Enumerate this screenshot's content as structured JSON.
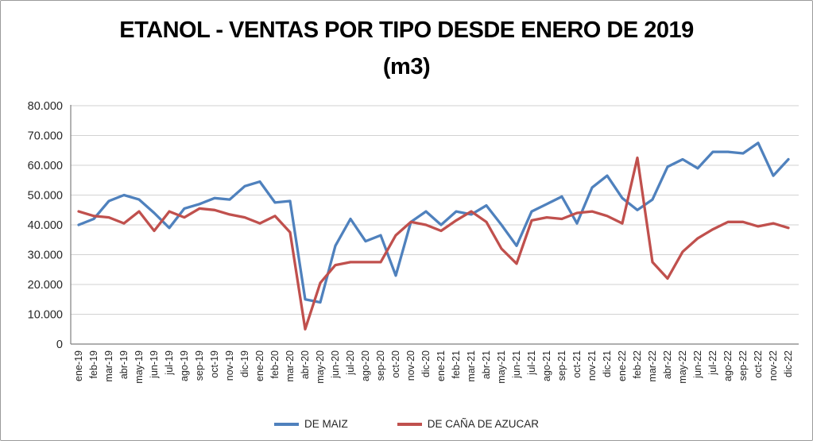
{
  "title": {
    "line1": "ETANOL - VENTAS POR TIPO DESDE ENERO DE 2019",
    "line2": "(m3)"
  },
  "legend": {
    "items": [
      {
        "label": "DE MAIZ",
        "color": "#4F81BD"
      },
      {
        "label": "DE CAÑA DE AZUCAR",
        "color": "#C0504D"
      }
    ],
    "position": "bottom-center"
  },
  "chart_data": {
    "type": "line",
    "title": "ETANOL - VENTAS POR TIPO DESDE ENERO DE 2019 (m3)",
    "xlabel": "",
    "ylabel": "",
    "ylim": [
      0,
      80000
    ],
    "ytick_step": 10000,
    "y_tick_labels": [
      "0",
      "10.000",
      "20.000",
      "30.000",
      "40.000",
      "50.000",
      "60.000",
      "70.000",
      "80.000"
    ],
    "grid": "horizontal",
    "legend_position": "bottom",
    "categories": [
      "ene-19",
      "feb-19",
      "mar-19",
      "abr-19",
      "may-19",
      "jun-19",
      "jul-19",
      "ago-19",
      "sep-19",
      "oct-19",
      "nov-19",
      "dic-19",
      "ene-20",
      "feb-20",
      "mar-20",
      "abr-20",
      "may-20",
      "jun-20",
      "jul-20",
      "ago-20",
      "sep-20",
      "oct-20",
      "nov-20",
      "dic-20",
      "ene-21",
      "feb-21",
      "mar-21",
      "abr-21",
      "may-21",
      "jun-21",
      "jul-21",
      "ago-21",
      "sep-21",
      "oct-21",
      "nov-21",
      "dic-21",
      "ene-22",
      "feb-22",
      "mar-22",
      "abr-22",
      "may-22",
      "jun-22",
      "jul-22",
      "ago-22",
      "sep-22",
      "oct-22",
      "nov-22",
      "dic-22"
    ],
    "series": [
      {
        "name": "DE MAIZ",
        "color": "#4F81BD",
        "values": [
          40000,
          42000,
          48000,
          50000,
          48500,
          44000,
          39000,
          45500,
          47000,
          49000,
          48500,
          53000,
          54500,
          47500,
          48000,
          15000,
          14000,
          33000,
          42000,
          34500,
          36500,
          23000,
          41000,
          44500,
          40000,
          44500,
          43500,
          46500,
          40000,
          33000,
          44500,
          47000,
          49500,
          40500,
          52500,
          56500,
          49000,
          45000,
          48500,
          59500,
          62000,
          59000,
          64500,
          64500,
          64000,
          67500,
          56500,
          62000
        ]
      },
      {
        "name": "DE CAÑA DE AZUCAR",
        "color": "#C0504D",
        "values": [
          44500,
          43000,
          42500,
          40500,
          44500,
          38000,
          44500,
          42500,
          45500,
          45000,
          43500,
          42500,
          40500,
          43000,
          37500,
          5000,
          20500,
          26500,
          27500,
          27500,
          27500,
          36500,
          41000,
          40000,
          38000,
          41500,
          44500,
          41000,
          32000,
          27000,
          41500,
          42500,
          42000,
          44000,
          44500,
          43000,
          40500,
          62500,
          27500,
          22000,
          31000,
          35500,
          38500,
          41000,
          41000,
          39500,
          40500,
          39000
        ]
      }
    ]
  }
}
